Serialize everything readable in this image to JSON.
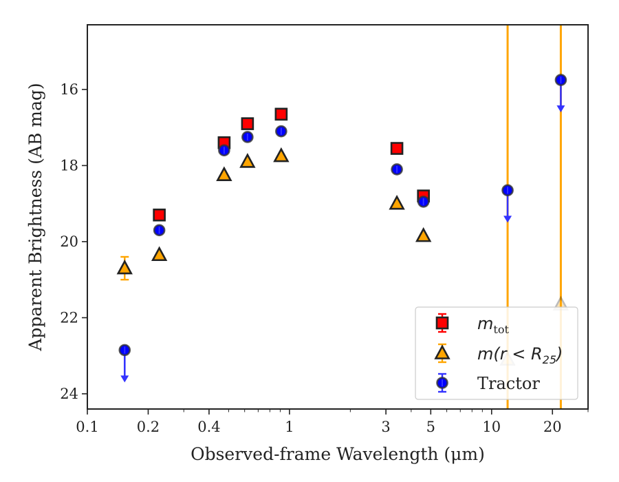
{
  "chart_data": {
    "type": "scatter",
    "xlabel": "Observed-frame Wavelength (μm)",
    "ylabel": "Apparent Brightness (AB mag)",
    "xscale": "log",
    "xlim": [
      0.1,
      30
    ],
    "ylim": [
      24.4,
      14.3
    ],
    "y_inverted": true,
    "x_ticks": [
      {
        "value": 0.1,
        "label": "0.1"
      },
      {
        "value": 0.2,
        "label": "0.2"
      },
      {
        "value": 0.4,
        "label": "0.4"
      },
      {
        "value": 1,
        "label": "1"
      },
      {
        "value": 3,
        "label": "3"
      },
      {
        "value": 5,
        "label": "5"
      },
      {
        "value": 10,
        "label": "10"
      },
      {
        "value": 20,
        "label": "20"
      }
    ],
    "y_ticks": [
      {
        "value": 16,
        "label": "16"
      },
      {
        "value": 18,
        "label": "18"
      },
      {
        "value": 20,
        "label": "20"
      },
      {
        "value": 22,
        "label": "22"
      },
      {
        "value": 24,
        "label": "24"
      }
    ],
    "grid": false,
    "legend_position": "lower-right",
    "vertical_lines": [
      {
        "x": 12.0,
        "color": "#ffa500"
      },
      {
        "x": 22.0,
        "color": "#ffa500"
      }
    ],
    "series": [
      {
        "name": "m_tot",
        "legend_label": {
          "base": "m",
          "sub": "tot"
        },
        "marker": "square",
        "face_color": "#ff0000",
        "edge_color": "#222222",
        "err_color": "#ff0000",
        "points": [
          {
            "x": 0.227,
            "y": 19.3
          },
          {
            "x": 0.475,
            "y": 17.4
          },
          {
            "x": 0.62,
            "y": 16.9
          },
          {
            "x": 0.91,
            "y": 16.65
          },
          {
            "x": 3.4,
            "y": 17.55
          },
          {
            "x": 4.6,
            "y": 18.8
          }
        ]
      },
      {
        "name": "m(r<R_25)",
        "legend_label": {
          "base": "m(r < R",
          "sub": "25",
          "tail": ")"
        },
        "marker": "triangle",
        "face_color": "#ffa500",
        "edge_color": "#222222",
        "err_color": "#ffa500",
        "points": [
          {
            "x": 0.153,
            "y": 20.7,
            "yerr": 0.3
          },
          {
            "x": 0.227,
            "y": 20.35
          },
          {
            "x": 0.475,
            "y": 18.25
          },
          {
            "x": 0.62,
            "y": 17.9
          },
          {
            "x": 0.91,
            "y": 17.75
          },
          {
            "x": 3.4,
            "y": 19.0
          },
          {
            "x": 4.6,
            "y": 19.85
          },
          {
            "x": 12.0,
            "y": 23.1,
            "faded": true
          },
          {
            "x": 22.0,
            "y": 21.65,
            "faded": true
          }
        ]
      },
      {
        "name": "Tractor",
        "legend_label": {
          "base": "Tractor"
        },
        "marker": "circle",
        "face_color": "#0000ff",
        "edge_color": "#333333",
        "err_color": "#3333ff",
        "points": [
          {
            "x": 0.153,
            "y": 22.85,
            "upper_limit": true
          },
          {
            "x": 0.227,
            "y": 19.7
          },
          {
            "x": 0.475,
            "y": 17.6
          },
          {
            "x": 0.62,
            "y": 17.25
          },
          {
            "x": 0.91,
            "y": 17.1
          },
          {
            "x": 3.4,
            "y": 18.1
          },
          {
            "x": 4.6,
            "y": 18.95
          },
          {
            "x": 12.0,
            "y": 18.65,
            "upper_limit": true
          },
          {
            "x": 22.0,
            "y": 15.75,
            "upper_limit": true
          }
        ]
      }
    ]
  }
}
